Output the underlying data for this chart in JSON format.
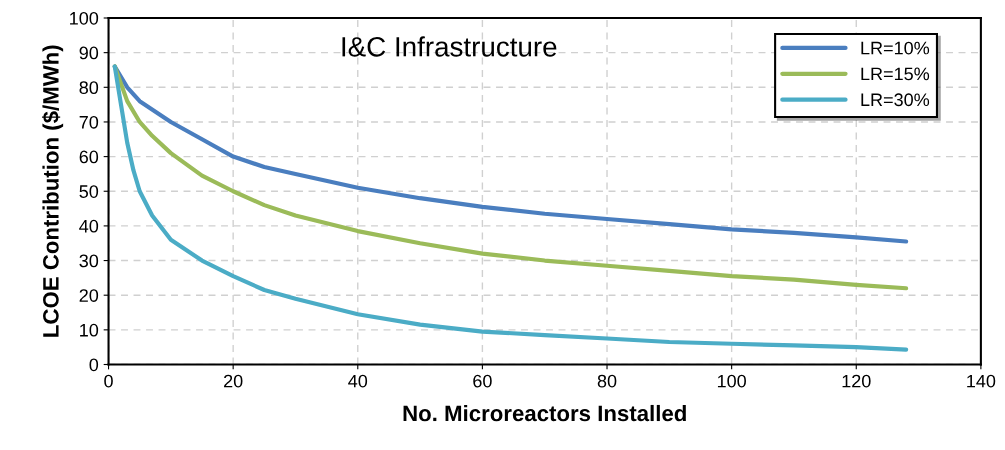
{
  "chart_data": {
    "type": "line",
    "title": "I&C Infrastructure",
    "xlabel": "No. Microreactors Installed",
    "ylabel": "LCOE Contribution ($/MWh)",
    "xlim": [
      0,
      140
    ],
    "xticks": [
      0,
      20,
      40,
      60,
      80,
      100,
      120,
      140
    ],
    "ylim": [
      0,
      100
    ],
    "yticks": [
      0,
      10,
      20,
      30,
      40,
      50,
      60,
      70,
      80,
      90,
      100
    ],
    "grid": true,
    "legend": "top right",
    "line_style": "solid",
    "series": [
      {
        "name": "LR=10%",
        "color": "#4a7ebf",
        "x": [
          1,
          3,
          5,
          10,
          15,
          20,
          25,
          30,
          40,
          50,
          60,
          70,
          80,
          90,
          100,
          110,
          120,
          128
        ],
        "values": [
          86,
          80,
          76,
          70,
          65,
          60,
          57,
          55,
          51,
          48,
          45.5,
          43.5,
          42,
          40.5,
          39,
          38,
          36.7,
          35.5
        ]
      },
      {
        "name": "LR=15%",
        "color": "#9bbb59",
        "x": [
          1,
          3,
          5,
          7,
          10,
          15,
          20,
          25,
          30,
          40,
          50,
          60,
          70,
          80,
          90,
          100,
          110,
          120,
          128
        ],
        "values": [
          86,
          76,
          70,
          66,
          61,
          54.5,
          50,
          46,
          43,
          38.5,
          35,
          32,
          30,
          28.5,
          27,
          25.5,
          24.5,
          23,
          22
        ]
      },
      {
        "name": "LR=30%",
        "color": "#4bacc6",
        "x": [
          1,
          2,
          3,
          4,
          5,
          7,
          10,
          15,
          20,
          25,
          30,
          40,
          50,
          60,
          70,
          80,
          90,
          100,
          110,
          120,
          128
        ],
        "values": [
          86,
          75,
          64,
          56,
          50,
          43,
          36,
          30,
          25.5,
          21.5,
          19,
          14.5,
          11.5,
          9.5,
          8.5,
          7.5,
          6.5,
          6,
          5.5,
          5,
          4.3
        ]
      }
    ]
  }
}
